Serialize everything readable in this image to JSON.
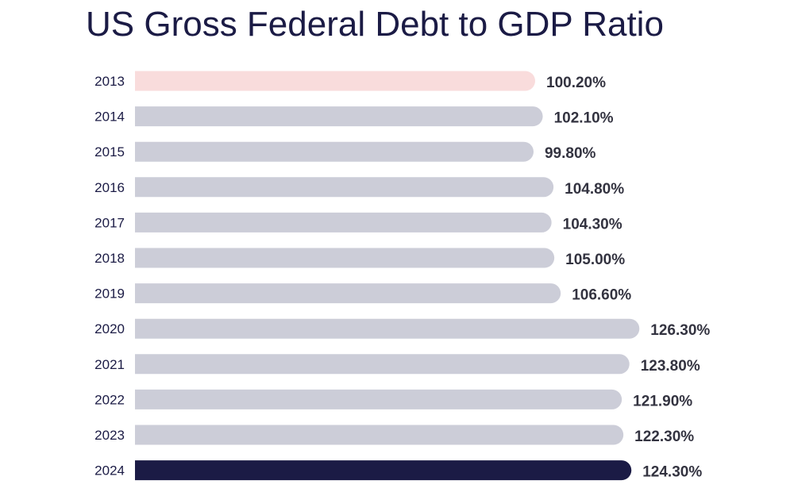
{
  "chart_data": {
    "type": "bar",
    "orientation": "horizontal",
    "title": "US Gross Federal Debt to GDP Ratio",
    "xlabel": "",
    "ylabel": "",
    "categories": [
      "2013",
      "2014",
      "2015",
      "2016",
      "2017",
      "2018",
      "2019",
      "2020",
      "2021",
      "2022",
      "2023",
      "2024"
    ],
    "values": [
      100.2,
      102.1,
      99.8,
      104.8,
      104.3,
      105.0,
      106.6,
      126.3,
      123.8,
      121.9,
      122.3,
      124.3
    ],
    "value_labels": [
      "100.20%",
      "102.10%",
      "99.80%",
      "104.80%",
      "104.30%",
      "105.00%",
      "106.60%",
      "126.30%",
      "123.80%",
      "121.90%",
      "122.30%",
      "124.30%"
    ],
    "grid": false,
    "legend": "none",
    "colors": {
      "first_bar": "#f9dcdc",
      "default_bar": "#cccdd8",
      "last_bar": "#1b1b45"
    }
  }
}
